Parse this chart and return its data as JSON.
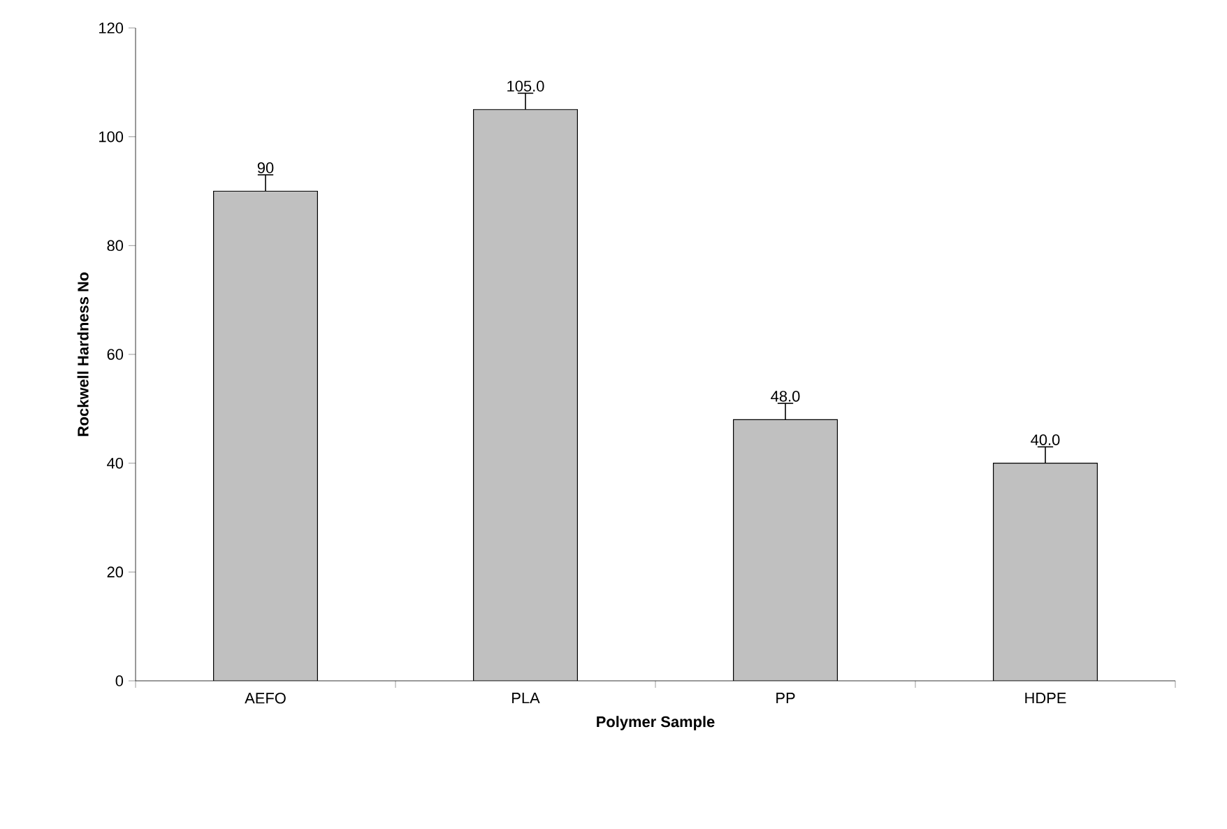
{
  "chart_data": {
    "type": "bar",
    "xlabel": "Polymer Sample",
    "ylabel": "Rockwell Hardness No",
    "categories": [
      "AEFO",
      "PLA",
      "PP",
      "HDPE"
    ],
    "values": [
      90,
      105,
      48,
      40
    ],
    "errors": [
      [
        90,
        93
      ],
      [
        105,
        108
      ],
      [
        48,
        51
      ],
      [
        40,
        43
      ]
    ],
    "value_labels": [
      "90",
      "105.0",
      "48.0",
      "40.0"
    ],
    "color": "#c0c0c0",
    "ylim": [
      0,
      120
    ],
    "yticks": [
      0,
      20,
      40,
      60,
      80,
      100,
      120
    ],
    "grid": false
  }
}
